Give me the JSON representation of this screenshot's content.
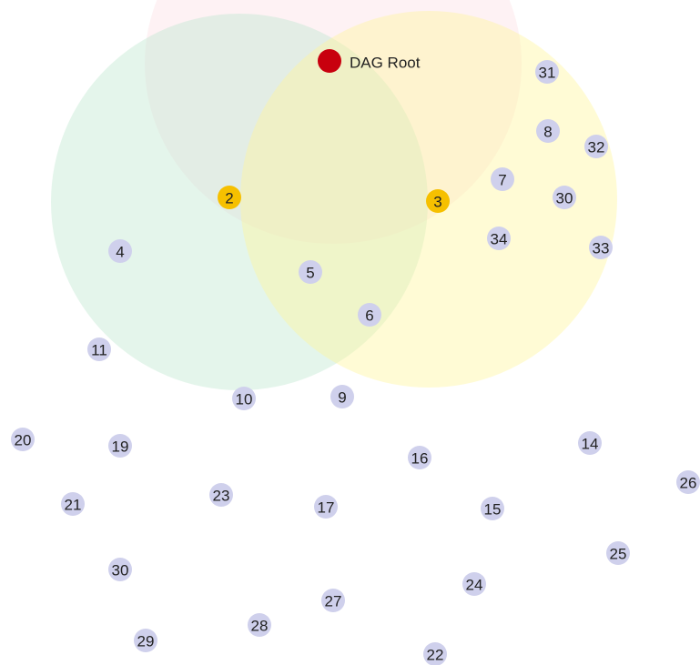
{
  "colors": {
    "root_range": "#fbd7dc",
    "node2_range": "#bfe8cf",
    "node3_range": "#fff59a",
    "root_node": "#c8000e",
    "joined_node": "#f6c000",
    "unjoined_node": "#cfd0ec"
  },
  "root": {
    "label": "DAG Root"
  },
  "joined_nodes": [
    {
      "id": "2"
    },
    {
      "id": "3"
    }
  ],
  "other_nodes": [
    {
      "id": "31"
    },
    {
      "id": "8"
    },
    {
      "id": "32"
    },
    {
      "id": "7"
    },
    {
      "id": "30"
    },
    {
      "id": "34"
    },
    {
      "id": "33"
    },
    {
      "id": "4"
    },
    {
      "id": "5"
    },
    {
      "id": "6"
    },
    {
      "id": "11"
    },
    {
      "id": "10"
    },
    {
      "id": "9"
    },
    {
      "id": "20"
    },
    {
      "id": "19"
    },
    {
      "id": "16"
    },
    {
      "id": "14"
    },
    {
      "id": "26"
    },
    {
      "id": "21"
    },
    {
      "id": "23"
    },
    {
      "id": "17"
    },
    {
      "id": "15"
    },
    {
      "id": "25"
    },
    {
      "id": "30"
    },
    {
      "id": "24"
    },
    {
      "id": "27"
    },
    {
      "id": "28"
    },
    {
      "id": "29"
    },
    {
      "id": "22"
    }
  ]
}
